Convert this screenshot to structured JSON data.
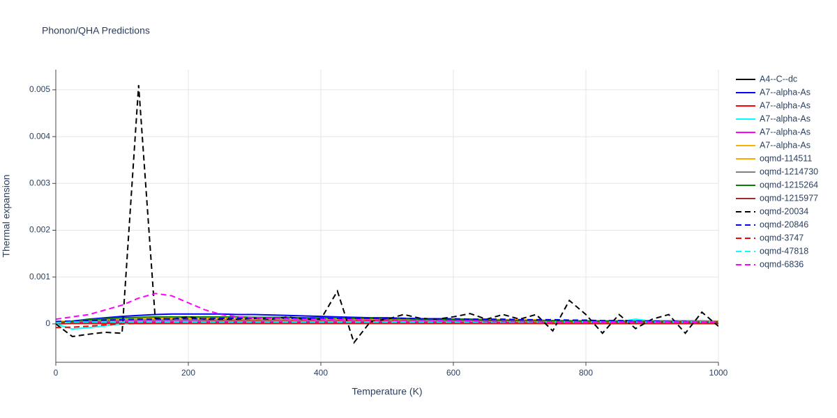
{
  "chart_data": {
    "type": "line",
    "title": "Phonon/QHA Predictions",
    "x_label": "Temperature (K)",
    "y_label": "Thermal expansion",
    "x": [
      0,
      25,
      50,
      75,
      100,
      125,
      150,
      175,
      200,
      225,
      250,
      275,
      300,
      325,
      350,
      375,
      400,
      425,
      450,
      475,
      500,
      525,
      550,
      575,
      600,
      625,
      650,
      675,
      700,
      725,
      750,
      775,
      800,
      825,
      850,
      875,
      900,
      925,
      950,
      975,
      1000
    ],
    "xlim": [
      0,
      1000
    ],
    "xticks": [
      0,
      200,
      400,
      600,
      800,
      1000
    ],
    "ylim": [
      -0.00082,
      0.00543
    ],
    "yticks": [
      0,
      0.001,
      0.002,
      0.003,
      0.004,
      0.005
    ],
    "grid": true,
    "series": [
      {
        "name": "A4--C--dc",
        "color": "#000000",
        "dash": "solid",
        "values": [
          0,
          2e-05,
          2e-05,
          2e-05,
          2e-05,
          2e-05,
          2e-05,
          2e-05,
          2e-05,
          2e-05,
          2e-05,
          2e-05,
          2e-05,
          2e-05,
          2e-05,
          2e-05,
          2e-05,
          2e-05,
          2e-05,
          2e-05,
          2e-05,
          2e-05,
          2e-05,
          2e-05,
          2e-05,
          2e-05,
          2e-05,
          2e-05,
          2e-05,
          2e-05,
          1e-05,
          1e-05,
          1e-05,
          1e-05,
          1e-05,
          1e-05,
          1e-05,
          1e-05,
          1e-05,
          1e-05,
          1e-05
        ]
      },
      {
        "name": "A7--alpha-As",
        "color": "#0000ff",
        "dash": "solid",
        "values": [
          0,
          6e-05,
          0.0001,
          0.00013,
          0.00016,
          0.00018,
          0.0002,
          0.00021,
          0.00021,
          0.00021,
          0.00021,
          0.0002,
          0.0002,
          0.00019,
          0.00018,
          0.00017,
          0.00016,
          0.00015,
          0.00014,
          0.00013,
          0.00013,
          0.00012,
          0.00011,
          0.00011,
          0.0001,
          0.0001,
          9e-05,
          9e-05,
          8e-05,
          8e-05,
          7e-05,
          7e-05,
          6e-05,
          6e-05,
          5e-05,
          5e-05,
          5e-05,
          4e-05,
          4e-05,
          3e-05,
          3e-05
        ]
      },
      {
        "name": "A7--alpha-As",
        "color": "#ff0000",
        "dash": "solid",
        "values": [
          0,
          1e-05,
          1e-05,
          1e-05,
          1e-05,
          1e-05,
          1e-05,
          1e-05,
          1e-05,
          1e-05,
          1e-05,
          1e-05,
          1e-05,
          1e-05,
          1e-05,
          1e-05,
          1e-05,
          1e-05,
          1e-05,
          1e-05,
          1e-05,
          1e-05,
          1e-05,
          1e-05,
          1e-05,
          1e-05,
          1e-05,
          1e-05,
          1e-05,
          1e-05,
          1e-05,
          1e-05,
          1e-05,
          1e-05,
          1e-05,
          1e-05,
          1e-05,
          1e-05,
          1e-05,
          1e-05,
          1e-05
        ]
      },
      {
        "name": "A7--alpha-As",
        "color": "#00ffff",
        "dash": "solid",
        "values": [
          0,
          -0.00011,
          -8e-05,
          -4e-05,
          0,
          3e-05,
          4e-05,
          5e-05,
          5e-05,
          5e-05,
          5e-05,
          5e-05,
          5e-05,
          5e-05,
          5e-05,
          5e-05,
          5e-05,
          5e-05,
          5e-05,
          5e-05,
          5e-05,
          5e-05,
          5e-05,
          5e-05,
          5e-05,
          5e-05,
          5e-05,
          5e-05,
          5e-05,
          4e-05,
          4e-05,
          4e-05,
          4e-05,
          4e-05,
          5e-05,
          0.0001,
          6e-05,
          4e-05,
          4e-05,
          3e-05,
          3e-05
        ]
      },
      {
        "name": "A7--alpha-As",
        "color": "#ff00ff",
        "dash": "solid",
        "values": [
          3e-05,
          4e-05,
          5e-05,
          5e-05,
          5e-05,
          5e-05,
          5e-05,
          5e-05,
          5e-05,
          5e-05,
          5e-05,
          5e-05,
          5e-05,
          5e-05,
          5e-05,
          5e-05,
          5e-05,
          5e-05,
          5e-05,
          5e-05,
          5e-05,
          5e-05,
          5e-05,
          5e-05,
          5e-05,
          5e-05,
          5e-05,
          5e-05,
          5e-05,
          5e-05,
          5e-05,
          5e-05,
          4e-05,
          4e-05,
          4e-05,
          4e-05,
          4e-05,
          4e-05,
          4e-05,
          4e-05,
          4e-05
        ]
      },
      {
        "name": "A7--alpha-As",
        "color": "#f4b400",
        "dash": "solid",
        "values": [
          3e-05,
          5e-05,
          7e-05,
          9e-05,
          0.0001,
          0.00011,
          0.00012,
          0.00012,
          0.00012,
          0.00012,
          0.00012,
          0.00011,
          0.00011,
          0.0001,
          0.0001,
          0.0001,
          9e-05,
          9e-05,
          9e-05,
          8e-05,
          8e-05,
          8e-05,
          7e-05,
          7e-05,
          7e-05,
          6e-05,
          6e-05,
          6e-05,
          5e-05,
          5e-05,
          5e-05,
          5e-05,
          4e-05,
          4e-05,
          4e-05,
          4e-05,
          3e-05,
          3e-05,
          3e-05,
          3e-05,
          3e-05
        ]
      },
      {
        "name": "oqmd-114511",
        "color": "#ffa500",
        "dash": "solid",
        "values": [
          5e-05,
          6e-05,
          7e-05,
          8e-05,
          9e-05,
          0.0001,
          0.0001,
          0.0001,
          0.0001,
          0.0001,
          0.0001,
          0.0001,
          0.0001,
          0.0001,
          0.0001,
          0.0001,
          0.0001,
          0.0001,
          0.0001,
          0.0001,
          9e-05,
          9e-05,
          9e-05,
          9e-05,
          9e-05,
          9e-05,
          9e-05,
          9e-05,
          9e-05,
          9e-05,
          7e-05,
          7e-05,
          7e-05,
          7e-05,
          7e-05,
          7e-05,
          7e-05,
          7e-05,
          7e-05,
          7e-05,
          6e-05
        ]
      },
      {
        "name": "oqmd-1214730",
        "color": "#808080",
        "dash": "solid",
        "values": [
          3e-05,
          5e-05,
          6e-05,
          7e-05,
          8e-05,
          8e-05,
          8e-05,
          8e-05,
          8e-05,
          8e-05,
          8e-05,
          8e-05,
          8e-05,
          8e-05,
          8e-05,
          8e-05,
          8e-05,
          8e-05,
          8e-05,
          8e-05,
          7e-05,
          7e-05,
          7e-05,
          7e-05,
          7e-05,
          7e-05,
          7e-05,
          7e-05,
          7e-05,
          7e-05,
          6e-05,
          6e-05,
          6e-05,
          6e-05,
          6e-05,
          6e-05,
          6e-05,
          6e-05,
          6e-05,
          6e-05,
          5e-05
        ]
      },
      {
        "name": "oqmd-1215264",
        "color": "#008000",
        "dash": "solid",
        "values": [
          2e-05,
          6e-05,
          9e-05,
          0.00011,
          0.00013,
          0.00014,
          0.00015,
          0.00015,
          0.00015,
          0.00015,
          0.00015,
          0.00015,
          0.00014,
          0.00014,
          0.00014,
          0.00013,
          0.00013,
          0.00013,
          0.00012,
          0.00012,
          0.00011,
          0.00011,
          0.0001,
          0.0001,
          9e-05,
          9e-05,
          8e-05,
          8e-05,
          7e-05,
          7e-05,
          7e-05,
          6e-05,
          6e-05,
          6e-05,
          5e-05,
          5e-05,
          5e-05,
          5e-05,
          4e-05,
          4e-05,
          4e-05
        ]
      },
      {
        "name": "oqmd-1215977",
        "color": "#a52a2a",
        "dash": "solid",
        "values": [
          2e-05,
          2e-05,
          2e-05,
          2e-05,
          2e-05,
          2e-05,
          2e-05,
          2e-05,
          2e-05,
          2e-05,
          2e-05,
          2e-05,
          2e-05,
          2e-05,
          2e-05,
          2e-05,
          2e-05,
          2e-05,
          2e-05,
          2e-05,
          2e-05,
          2e-05,
          2e-05,
          2e-05,
          2e-05,
          2e-05,
          2e-05,
          2e-05,
          2e-05,
          2e-05,
          2e-05,
          2e-05,
          2e-05,
          2e-05,
          2e-05,
          2e-05,
          2e-05,
          2e-05,
          2e-05,
          2e-05,
          2e-05
        ]
      },
      {
        "name": "oqmd-20034",
        "color": "#000000",
        "dash": "dash",
        "values": [
          0,
          -0.00027,
          -0.00022,
          -0.00018,
          -0.0002,
          0.0051,
          0.00012,
          0.0001,
          0.00015,
          0.0001,
          0.0001,
          0.0001,
          0.00012,
          0.0001,
          0.00015,
          0.0001,
          0.0001,
          0.0007,
          -0.0004,
          5e-05,
          0.0001,
          0.0002,
          0.00012,
          0.0001,
          0.00015,
          0.00022,
          0.0001,
          0.0002,
          0.0001,
          0.0002,
          -0.00015,
          0.0005,
          0.0002,
          -0.0002,
          0.0002,
          -0.0001,
          0.0001,
          0.0002,
          -0.0002,
          0.00025,
          -5e-05
        ]
      },
      {
        "name": "oqmd-20846",
        "color": "#0000ff",
        "dash": "dash",
        "values": [
          5e-05,
          6e-05,
          7e-05,
          8e-05,
          9e-05,
          0.0001,
          0.0001,
          0.00011,
          0.00011,
          0.00011,
          0.00012,
          0.00012,
          0.00012,
          0.00012,
          0.00012,
          0.00012,
          0.00012,
          0.00012,
          0.00012,
          0.00012,
          0.00012,
          0.00012,
          0.00011,
          0.00011,
          0.00011,
          0.0001,
          0.0001,
          0.0001,
          9e-05,
          9e-05,
          9e-05,
          8e-05,
          8e-05,
          7e-05,
          7e-05,
          6e-05,
          6e-05,
          5e-05,
          5e-05,
          4e-05,
          4e-05
        ]
      },
      {
        "name": "oqmd-3747",
        "color": "#ff0000",
        "dash": "dash",
        "values": [
          -8e-05,
          -7e-05,
          -5e-05,
          -2e-05,
          0,
          2e-05,
          3e-05,
          4e-05,
          4e-05,
          5e-05,
          5e-05,
          5e-05,
          5e-05,
          5e-05,
          5e-05,
          5e-05,
          5e-05,
          5e-05,
          5e-05,
          5e-05,
          5e-05,
          5e-05,
          5e-05,
          5e-05,
          5e-05,
          5e-05,
          5e-05,
          5e-05,
          5e-05,
          5e-05,
          4e-05,
          4e-05,
          4e-05,
          4e-05,
          4e-05,
          4e-05,
          4e-05,
          4e-05,
          4e-05,
          4e-05,
          3e-05
        ]
      },
      {
        "name": "oqmd-47818",
        "color": "#00ffff",
        "dash": "dash",
        "values": [
          2e-05,
          4e-05,
          4e-05,
          4e-05,
          4e-05,
          4e-05,
          4e-05,
          4e-05,
          4e-05,
          4e-05,
          4e-05,
          4e-05,
          4e-05,
          4e-05,
          4e-05,
          4e-05,
          4e-05,
          4e-05,
          4e-05,
          4e-05,
          4e-05,
          4e-05,
          4e-05,
          4e-05,
          4e-05,
          4e-05,
          4e-05,
          4e-05,
          4e-05,
          4e-05,
          4e-05,
          4e-05,
          4e-05,
          4e-05,
          4e-05,
          4e-05,
          4e-05,
          4e-05,
          4e-05,
          4e-05,
          4e-05
        ]
      },
      {
        "name": "oqmd-6836",
        "color": "#ff00ff",
        "dash": "dash",
        "values": [
          0.0001,
          0.00015,
          0.0002,
          0.0003,
          0.0004,
          0.00055,
          0.00065,
          0.0006,
          0.00045,
          0.0003,
          0.0002,
          0.00015,
          0.00013,
          0.00012,
          0.00011,
          0.0001,
          0.0001,
          9e-05,
          9e-05,
          8e-05,
          8e-05,
          7e-05,
          7e-05,
          6e-05,
          6e-05,
          6e-05,
          5e-05,
          5e-05,
          5e-05,
          5e-05,
          4e-05,
          4e-05,
          4e-05,
          4e-05,
          4e-05,
          4e-05,
          4e-05,
          4e-05,
          4e-05,
          4e-05,
          3e-05
        ]
      }
    ]
  }
}
